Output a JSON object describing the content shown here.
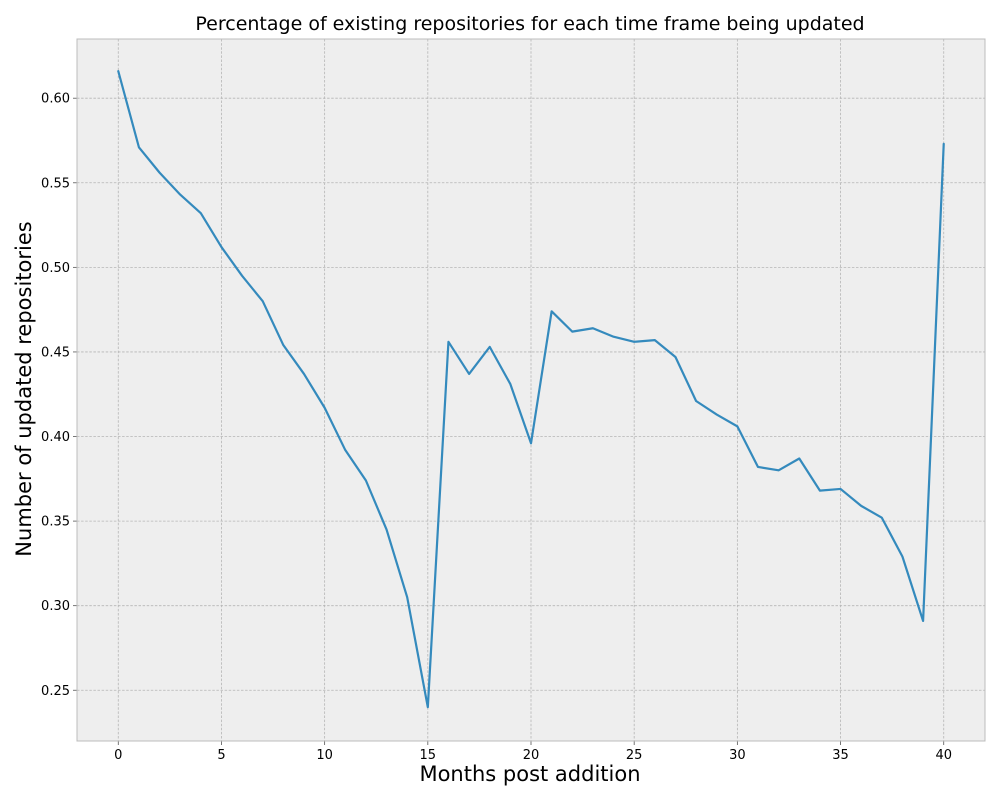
{
  "chart_data": {
    "type": "line",
    "title": "Percentage of existing repositories for each time frame being updated",
    "xlabel": "Months post addition",
    "ylabel": "Number of updated repositories",
    "xlim": [
      -2,
      42
    ],
    "ylim": [
      0.22,
      0.635
    ],
    "xticks": [
      0,
      5,
      10,
      15,
      20,
      25,
      30,
      35,
      40
    ],
    "yticks": [
      0.25,
      0.3,
      0.35,
      0.4,
      0.45,
      0.5,
      0.55,
      0.6
    ],
    "ytick_labels": [
      "0.25",
      "0.30",
      "0.35",
      "0.40",
      "0.45",
      "0.50",
      "0.55",
      "0.60"
    ],
    "grid": true,
    "legend": "none",
    "colors": {
      "line": "#348ABD",
      "plot_background": "#EEEEEE",
      "frame": "#BCBCBC",
      "grid": "#B2B2B2"
    },
    "series": [
      {
        "x": [
          0,
          1,
          2,
          3,
          4,
          5,
          6,
          7,
          8,
          9,
          10,
          11,
          12,
          13,
          14,
          15,
          16,
          17,
          18,
          19,
          20,
          21,
          22,
          23,
          24,
          25,
          26,
          27,
          28,
          29,
          30,
          31,
          32,
          33,
          34,
          35,
          36,
          37,
          38,
          39,
          40
        ],
        "y": [
          0.616,
          0.571,
          0.556,
          0.543,
          0.532,
          0.512,
          0.495,
          0.48,
          0.454,
          0.437,
          0.417,
          0.392,
          0.374,
          0.345,
          0.305,
          0.24,
          0.456,
          0.437,
          0.453,
          0.431,
          0.396,
          0.474,
          0.462,
          0.464,
          0.459,
          0.456,
          0.457,
          0.447,
          0.421,
          0.413,
          0.406,
          0.382,
          0.38,
          0.387,
          0.368,
          0.369,
          0.359,
          0.352,
          0.329,
          0.291,
          0.573
        ]
      }
    ]
  }
}
